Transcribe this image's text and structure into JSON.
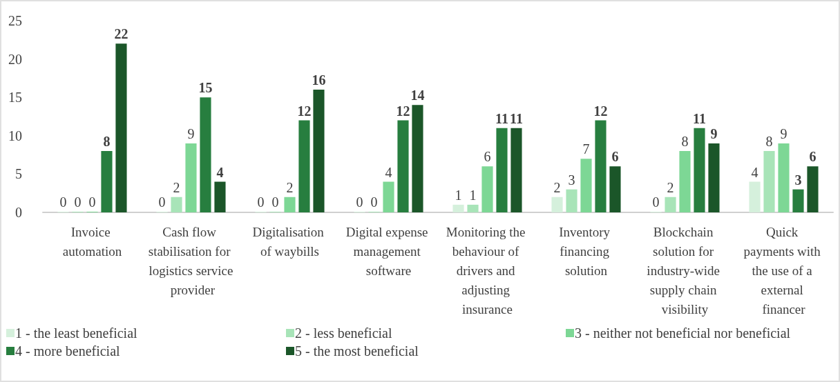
{
  "chart_data": {
    "type": "bar",
    "categories": [
      "Invoice automation",
      "Cash flow stabilisation for logistics service provider",
      "Digitalisation of waybills",
      "Digital expense management software",
      "Monitoring the behaviour of drivers and adjusting insurance",
      "Inventory financing solution",
      "Blockchain solution for industry-wide supply chain visibility",
      "Quick payments with the use of a external financer"
    ],
    "series": [
      {
        "name": "1 - the least beneficial",
        "color": "#d5f0dc",
        "values": [
          0,
          0,
          0,
          0,
          1,
          2,
          0,
          4
        ]
      },
      {
        "name": "2 - less beneficial",
        "color": "#a8e4b8",
        "values": [
          0,
          2,
          0,
          0,
          1,
          3,
          2,
          8
        ]
      },
      {
        "name": "3 - neither not beneficial nor beneficial",
        "color": "#7dd795",
        "values": [
          0,
          9,
          2,
          4,
          6,
          7,
          8,
          9
        ]
      },
      {
        "name": "4 - more beneficial",
        "color": "#277e3f",
        "values": [
          8,
          15,
          12,
          12,
          11,
          12,
          11,
          3
        ]
      },
      {
        "name": "5 - the most beneficial",
        "color": "#1b5629",
        "values": [
          22,
          4,
          16,
          14,
          11,
          6,
          9,
          6
        ]
      }
    ],
    "ylim": [
      0,
      25
    ],
    "yticks": [
      0,
      5,
      10,
      15,
      20,
      25
    ],
    "grid": false,
    "legend": "bottom",
    "data_labels": true
  }
}
